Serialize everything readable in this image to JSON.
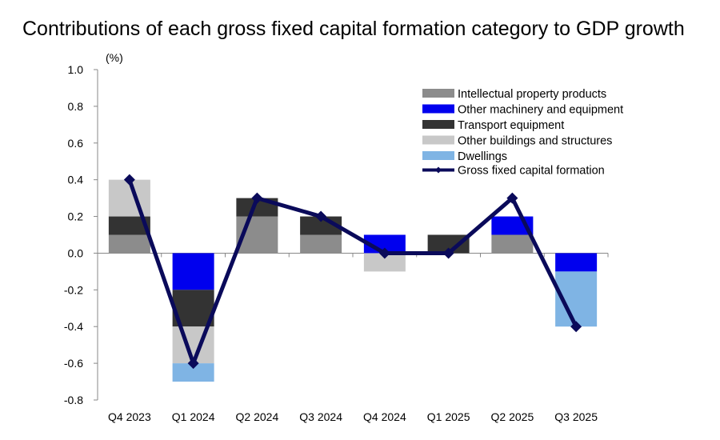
{
  "chart_data": {
    "type": "bar",
    "stacked": true,
    "title": "Contributions of each gross fixed capital formation category to GDP growth",
    "ylabel": "(%)",
    "xlabel": "",
    "ylim": [
      -0.8,
      1.0
    ],
    "yticks": [
      "1.0",
      "0.8",
      "0.6",
      "0.4",
      "0.2",
      "0.0",
      "-0.2",
      "-0.4",
      "-0.6",
      "-0.8"
    ],
    "ytick_values": [
      1.0,
      0.8,
      0.6,
      0.4,
      0.2,
      0.0,
      -0.2,
      -0.4,
      -0.6,
      -0.8
    ],
    "categories": [
      "Q4 2023",
      "Q1 2024",
      "Q2 2024",
      "Q3 2024",
      "Q4 2024",
      "Q1 2025",
      "Q2 2025",
      "Q3 2025"
    ],
    "legend_position": "top-right",
    "series": [
      {
        "name": "Intellectual property products",
        "color": "#8c8c8c",
        "values": [
          0.1,
          -0.0,
          0.2,
          0.1,
          0.0,
          0.0,
          0.1,
          0.0
        ]
      },
      {
        "name": "Other machinery and equipment",
        "color": "#0000ee",
        "values": [
          0.0,
          -0.2,
          0.0,
          0.0,
          0.1,
          0.0,
          0.1,
          -0.1
        ]
      },
      {
        "name": "Transport equipment",
        "color": "#333333",
        "values": [
          0.1,
          -0.2,
          0.1,
          0.1,
          0.0,
          0.1,
          0.0,
          0.0
        ]
      },
      {
        "name": "Other buildings and structures",
        "color": "#c8c8c8",
        "values": [
          0.2,
          -0.2,
          0.0,
          0.0,
          -0.1,
          0.0,
          0.0,
          0.0
        ]
      },
      {
        "name": "Dwellings",
        "color": "#7fb4e4",
        "values": [
          0.0,
          -0.1,
          0.0,
          0.0,
          0.0,
          0.0,
          0.0,
          -0.3
        ]
      }
    ],
    "line_series": {
      "name": "Gross fixed capital formation",
      "color": "#0a0a5a",
      "values": [
        0.4,
        -0.6,
        0.3,
        0.2,
        0.0,
        0.0,
        0.3,
        -0.4
      ]
    }
  }
}
